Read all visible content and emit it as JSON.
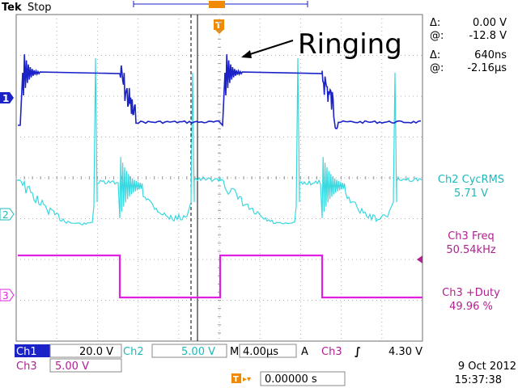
{
  "brand": "Tek",
  "status": "Stop",
  "annotation": "Ringing",
  "cursors": {
    "v_delta_symbol": "Δ:",
    "v_delta": "0.00 V",
    "v_at_symbol": "@:",
    "v_at": "-12.8 V",
    "t_delta_symbol": "Δ:",
    "t_delta": "640ns",
    "t_at_symbol": "@:",
    "t_at": "-2.16μs"
  },
  "measurements": [
    {
      "label": "Ch2 CycRMS",
      "value": "5.71 V",
      "color": "#20b8b8"
    },
    {
      "label": "Ch3 Freq",
      "value": "50.54kHz",
      "color": "#b02090"
    },
    {
      "label": "Ch3 +Duty",
      "value": "49.96 %",
      "color": "#b02090"
    }
  ],
  "channel_markers": [
    "1",
    "2",
    "3"
  ],
  "trigger_marker": "T",
  "bottom": {
    "ch1_label": "Ch1",
    "ch1_scale": "20.0 V",
    "ch2_label": "Ch2",
    "ch2_scale": "5.00 V",
    "timebase_label": "M",
    "timebase": "4.00μs",
    "trigger_mode": "A",
    "trigger_source": "Ch3",
    "trigger_slope": "∫",
    "trigger_level": "4.30 V",
    "ch3_label": "Ch3",
    "ch3_scale": "5.00 V",
    "trig_pos_icon": "T▸▾",
    "trig_pos": "0.00000 s",
    "date": "9 Oct  2012",
    "time": "15:37:38"
  },
  "colors": {
    "ch1": "#1a22c8",
    "ch2": "#38d8e0",
    "ch3": "#e020e0",
    "grid": "#9a9a9a",
    "trigger": "#f08a00",
    "cursor": "#000000"
  }
}
